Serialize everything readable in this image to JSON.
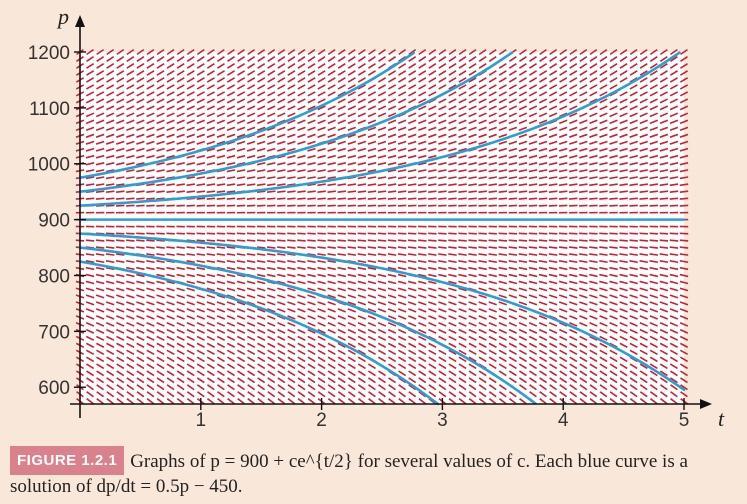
{
  "chart_data": {
    "type": "line",
    "title": "",
    "xlabel": "t",
    "ylabel": "p",
    "xlim": [
      0,
      5
    ],
    "ylim": [
      570,
      1200
    ],
    "x_ticks": [
      1,
      2,
      3,
      4,
      5
    ],
    "y_ticks": [
      600,
      700,
      800,
      900,
      1000,
      1100,
      1200
    ],
    "equilibrium": 900,
    "slope_field": {
      "equation": "dp/dt = 0.5p - 450",
      "color": "#cc1f2f"
    },
    "curve_color": "#2a9fd6",
    "series": [
      {
        "c": 75
      },
      {
        "c": 50
      },
      {
        "c": 25
      },
      {
        "c": 0
      },
      {
        "c": -25
      },
      {
        "c": -50
      },
      {
        "c": -75
      }
    ],
    "grid": false,
    "legend": "none"
  },
  "caption": {
    "label": "FIGURE 1.2.1",
    "text": "Graphs of p = 900 + ce^{t/2} for several values of c. Each blue curve is a solution of dp/dt = 0.5p − 450."
  }
}
